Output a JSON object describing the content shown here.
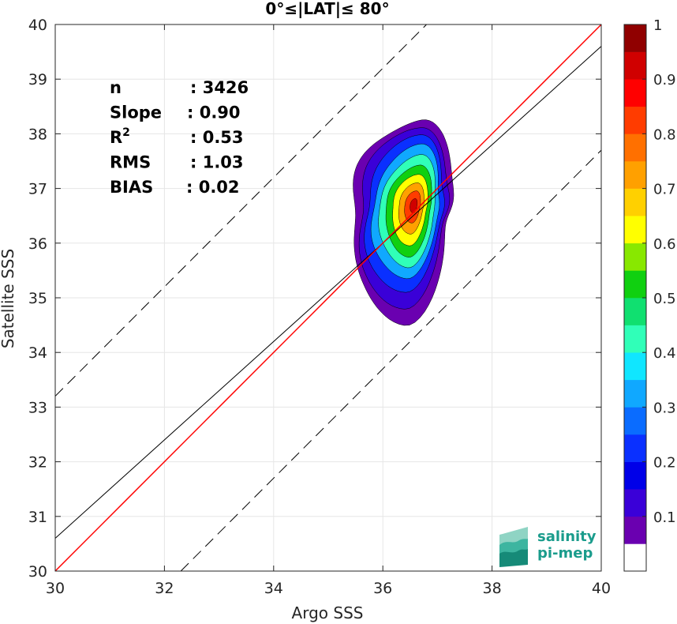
{
  "chart_data": {
    "type": "scatter",
    "title": "0°≤|LAT|≤ 80°",
    "xlabel": "Argo SSS",
    "ylabel": "Satellite SSS",
    "xlim": [
      30,
      40
    ],
    "ylim": [
      30,
      40
    ],
    "xticks": [
      "30",
      "32",
      "34",
      "36",
      "38",
      "40"
    ],
    "yticks": [
      "30",
      "31",
      "32",
      "33",
      "34",
      "35",
      "36",
      "37",
      "38",
      "39",
      "40"
    ],
    "grid": true,
    "stats": [
      {
        "label": "n",
        "value": ": 3426"
      },
      {
        "label": "Slope",
        "value": ": 0.90"
      },
      {
        "label": "R",
        "sup": "2",
        "value": ": 0.53"
      },
      {
        "label": "RMS",
        "value": ": 1.03"
      },
      {
        "label": "BIAS",
        "value": ": 0.02"
      }
    ],
    "identity_line": {
      "slope": 1,
      "intercept": 0,
      "color": "#ff0000"
    },
    "regression_line": {
      "slope": 0.9,
      "intercept": 3.6,
      "color": "#000000"
    },
    "dashed_bounds": [
      {
        "offset": 3.2
      },
      {
        "offset": -2.3
      }
    ],
    "density_contours": {
      "levels": [
        0.05,
        0.1,
        0.2,
        0.3,
        0.4,
        0.5,
        0.6,
        0.7,
        0.8,
        0.9
      ],
      "center": [
        36.58,
        36.7
      ],
      "extent_x": [
        35.45,
        37.25
      ],
      "extent_y": [
        34.58,
        38.32
      ]
    },
    "colorbar": {
      "ticks": [
        "0.1",
        "0.2",
        "0.3",
        "0.4",
        "0.5",
        "0.6",
        "0.7",
        "0.8",
        "0.9",
        "1"
      ],
      "range": [
        0,
        1
      ],
      "colors": [
        "#ffffff",
        "#6a00b0",
        "#3a00d8",
        "#0000e8",
        "#0a30ff",
        "#0a6cff",
        "#10a8ff",
        "#10e6ff",
        "#30ffb8",
        "#10e070",
        "#10d010",
        "#88e800",
        "#ffff00",
        "#ffd000",
        "#ffa000",
        "#ff7000",
        "#ff3c00",
        "#ff0000",
        "#d00000",
        "#900000"
      ]
    }
  },
  "logo": {
    "line1": "salinity",
    "line2": "pi-mep"
  }
}
